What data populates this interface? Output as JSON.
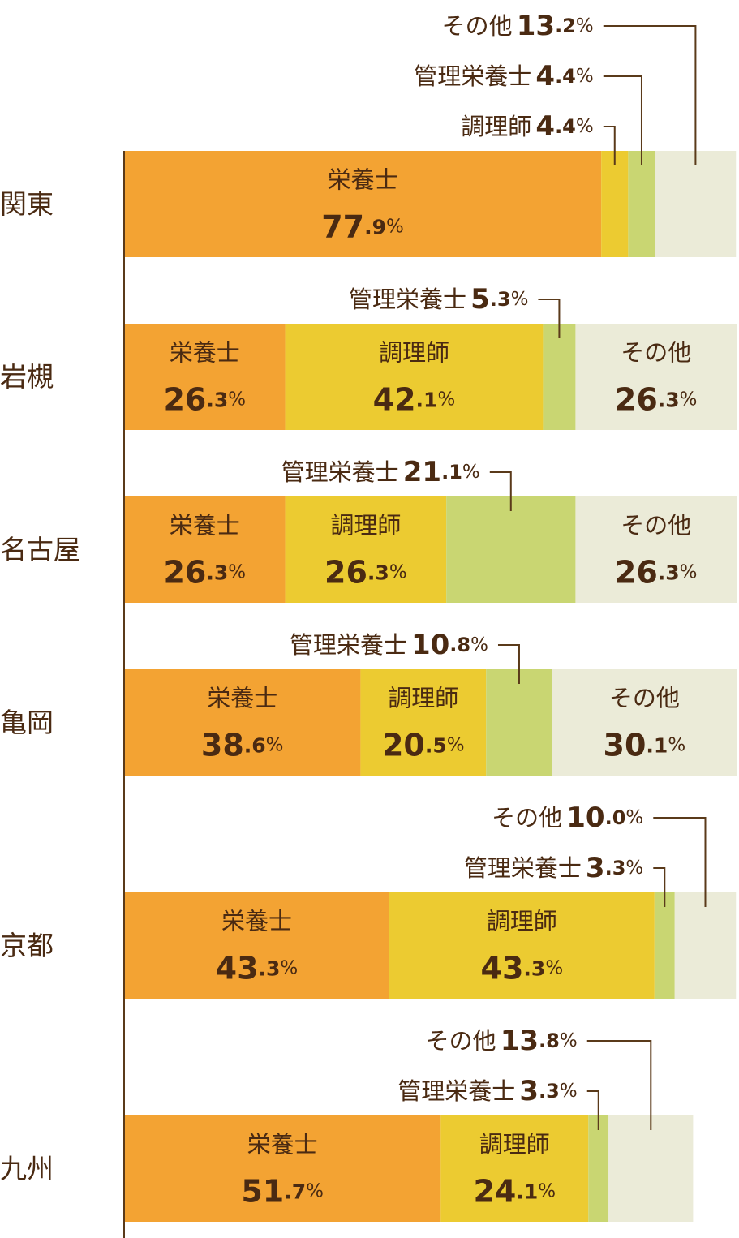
{
  "chart_data": {
    "type": "bar",
    "orientation": "horizontal",
    "stacked": true,
    "categories": [
      "関東",
      "岩槻",
      "名古屋",
      "亀岡",
      "京都",
      "九州"
    ],
    "xlim": [
      0,
      100
    ],
    "series": [
      {
        "name": "栄養士",
        "color": "#f3a333",
        "values": [
          77.9,
          26.3,
          26.3,
          38.6,
          43.3,
          51.7
        ],
        "value_labels": [
          "77.9%",
          "26.3%",
          "26.3%",
          "38.6%",
          "43.3%",
          "51.7%"
        ]
      },
      {
        "name": "調理師",
        "color": "#eccb31",
        "values": [
          4.4,
          42.1,
          26.3,
          20.5,
          43.3,
          24.1
        ],
        "value_labels": [
          "4.4%",
          "42.1%",
          "26.3%",
          "20.5%",
          "43.3%",
          "24.1%"
        ]
      },
      {
        "name": "管理栄養士",
        "color": "#c9d672",
        "values": [
          4.4,
          5.3,
          21.1,
          10.8,
          3.3,
          3.3
        ],
        "value_labels": [
          "4.4%",
          "5.3%",
          "21.1%",
          "10.8%",
          "3.3%",
          "3.3%"
        ]
      },
      {
        "name": "その他",
        "color": "#ebebd8",
        "values": [
          13.2,
          26.3,
          26.3,
          30.1,
          10.0,
          13.8
        ],
        "value_labels": [
          "13.2%",
          "26.3%",
          "26.3%",
          "30.1%",
          "10.0%",
          "13.8%"
        ]
      }
    ]
  }
}
